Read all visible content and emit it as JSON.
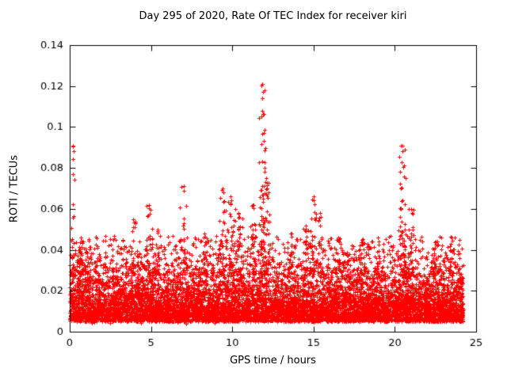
{
  "page": {
    "background": "#ffffff"
  },
  "chart_data": {
    "type": "scatter",
    "title": "Day 295 of 2020, Rate Of TEC Index for receiver kiri",
    "xlabel": "GPS time / hours",
    "ylabel": "ROTI / TECUs",
    "xlim": [
      0,
      25
    ],
    "ylim": [
      0,
      0.14
    ],
    "xticks": [
      0,
      5,
      10,
      15,
      20,
      25
    ],
    "yticks": [
      0,
      0.02,
      0.04,
      0.06,
      0.08,
      0.1,
      0.12,
      0.14
    ],
    "xtick_labels": [
      "0",
      "5",
      "10",
      "15",
      "20",
      "25"
    ],
    "ytick_labels": [
      "0",
      "0.02",
      "0.04",
      "0.06",
      "0.08",
      "0.1",
      "0.12",
      "0.14"
    ],
    "grid": false,
    "legend": "none",
    "marker": "plus",
    "color": "#ff0000",
    "axis_color": "#000000",
    "x_data_range": [
      0,
      24.2
    ],
    "baseline_band": {
      "y_min": 0.004,
      "y_typical_max": 0.045,
      "mean_y": 0.016,
      "n_points": 9000
    },
    "spikes": [
      {
        "x": 0.2,
        "peak": 0.091,
        "width": 0.15,
        "count": 16
      },
      {
        "x": 0.7,
        "peak": 0.046,
        "width": 0.6,
        "count": 40
      },
      {
        "x": 3.9,
        "peak": 0.055,
        "width": 0.2,
        "count": 15
      },
      {
        "x": 4.85,
        "peak": 0.062,
        "width": 0.3,
        "count": 30
      },
      {
        "x": 5.4,
        "peak": 0.05,
        "width": 0.3,
        "count": 20
      },
      {
        "x": 7.0,
        "peak": 0.071,
        "width": 0.25,
        "count": 25
      },
      {
        "x": 8.3,
        "peak": 0.048,
        "width": 0.3,
        "count": 20
      },
      {
        "x": 9.4,
        "peak": 0.07,
        "width": 0.35,
        "count": 45
      },
      {
        "x": 9.9,
        "peak": 0.066,
        "width": 0.3,
        "count": 40
      },
      {
        "x": 10.4,
        "peak": 0.058,
        "width": 0.3,
        "count": 30
      },
      {
        "x": 11.3,
        "peak": 0.062,
        "width": 0.25,
        "count": 30
      },
      {
        "x": 11.85,
        "peak": 0.121,
        "width": 0.25,
        "count": 60
      },
      {
        "x": 12.1,
        "peak": 0.075,
        "width": 0.3,
        "count": 40
      },
      {
        "x": 13.6,
        "peak": 0.048,
        "width": 0.3,
        "count": 15
      },
      {
        "x": 14.5,
        "peak": 0.052,
        "width": 0.2,
        "count": 15
      },
      {
        "x": 15.0,
        "peak": 0.066,
        "width": 0.25,
        "count": 30
      },
      {
        "x": 15.4,
        "peak": 0.058,
        "width": 0.2,
        "count": 20
      },
      {
        "x": 16.5,
        "peak": 0.046,
        "width": 0.3,
        "count": 15
      },
      {
        "x": 18.0,
        "peak": 0.045,
        "width": 0.3,
        "count": 15
      },
      {
        "x": 19.0,
        "peak": 0.044,
        "width": 0.3,
        "count": 12
      },
      {
        "x": 20.45,
        "peak": 0.091,
        "width": 0.3,
        "count": 50
      },
      {
        "x": 21.0,
        "peak": 0.06,
        "width": 0.25,
        "count": 25
      },
      {
        "x": 22.5,
        "peak": 0.044,
        "width": 0.3,
        "count": 15
      },
      {
        "x": 23.5,
        "peak": 0.046,
        "width": 0.3,
        "count": 15
      }
    ],
    "seed": 12345
  }
}
